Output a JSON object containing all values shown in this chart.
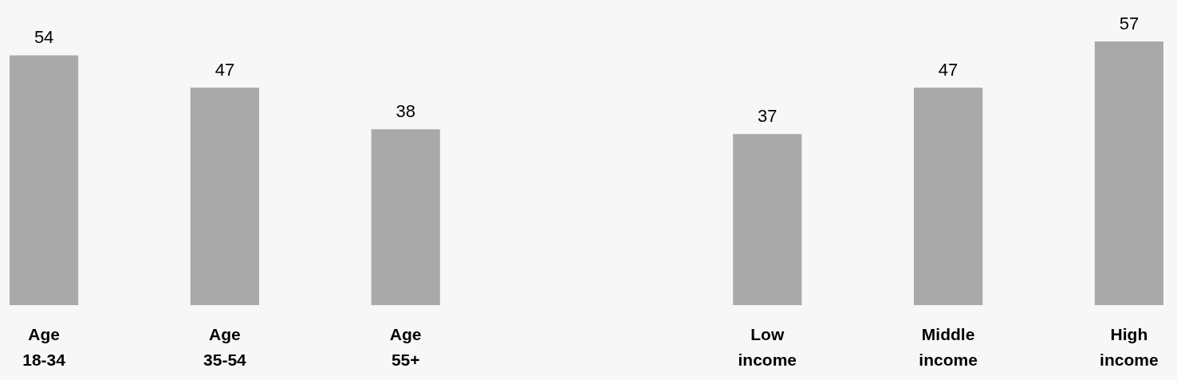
{
  "chart_data": {
    "type": "bar",
    "categories": [
      "Age 18-34",
      "Age 35-54",
      "Age 55+",
      null,
      "Low income",
      "Middle income",
      "High income"
    ],
    "values": [
      54,
      47,
      38,
      null,
      37,
      47,
      57
    ],
    "color": "#a9a9a9",
    "data_labels": true
  }
}
